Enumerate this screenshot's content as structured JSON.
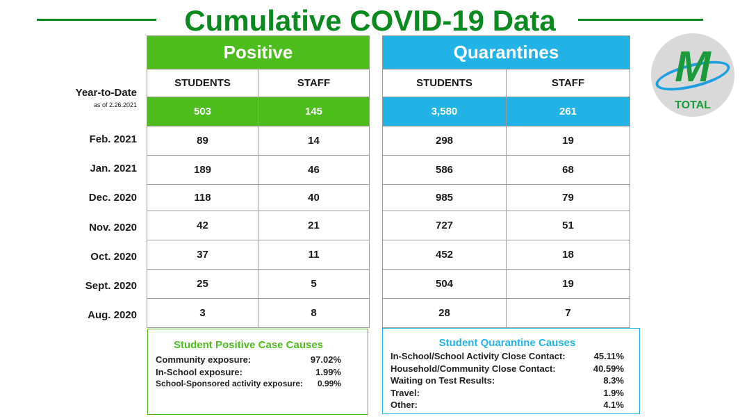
{
  "title": "Cumulative COVID-19 Data",
  "colors": {
    "title_green": "#0a8a1e",
    "positive_green": "#4cbd1d",
    "quarantine_blue": "#22b3e6"
  },
  "logo": {
    "letter": "M",
    "text": "TOTAL",
    "icon": "school-logo-icon"
  },
  "ytd": {
    "label": "Year-to-Date",
    "sub": "as of 2.26.2021"
  },
  "months": [
    "Feb. 2021",
    "Jan. 2021",
    "Dec. 2020",
    "Nov. 2020",
    "Oct. 2020",
    "Sept. 2020",
    "Aug. 2020"
  ],
  "positive": {
    "header": "Positive",
    "col_students": "STUDENTS",
    "col_staff": "STAFF",
    "ytd_students": "503",
    "ytd_staff": "145",
    "rows": [
      {
        "students": "89",
        "staff": "14"
      },
      {
        "students": "189",
        "staff": "46"
      },
      {
        "students": "118",
        "staff": "40"
      },
      {
        "students": "42",
        "staff": "21"
      },
      {
        "students": "37",
        "staff": "11"
      },
      {
        "students": "25",
        "staff": "5"
      },
      {
        "students": "3",
        "staff": "8"
      }
    ]
  },
  "quarantines": {
    "header": "Quarantines",
    "col_students": "STUDENTS",
    "col_staff": "STAFF",
    "ytd_students": "3,580",
    "ytd_staff": "261",
    "rows": [
      {
        "students": "298",
        "staff": "19"
      },
      {
        "students": "586",
        "staff": "68"
      },
      {
        "students": "985",
        "staff": "79"
      },
      {
        "students": "727",
        "staff": "51"
      },
      {
        "students": "452",
        "staff": "18"
      },
      {
        "students": "504",
        "staff": "19"
      },
      {
        "students": "28",
        "staff": "7"
      }
    ]
  },
  "positive_causes": {
    "title": "Student Positive Case Causes",
    "items": [
      {
        "label": "Community exposure:",
        "value": "97.02%"
      },
      {
        "label": "In-School exposure:",
        "value": "1.99%"
      },
      {
        "label": "School-Sponsored activity exposure:",
        "value": "0.99%"
      }
    ]
  },
  "quarantine_causes": {
    "title": "Student Quarantine Causes",
    "items": [
      {
        "label": "In-School/School Activity Close Contact:",
        "value": "45.11%"
      },
      {
        "label": "Household/Community Close Contact:",
        "value": "40.59%"
      },
      {
        "label": "Waiting on Test Results:",
        "value": "8.3%"
      },
      {
        "label": "Travel:",
        "value": "1.9%"
      },
      {
        "label": "Other:",
        "value": "4.1%"
      }
    ]
  }
}
